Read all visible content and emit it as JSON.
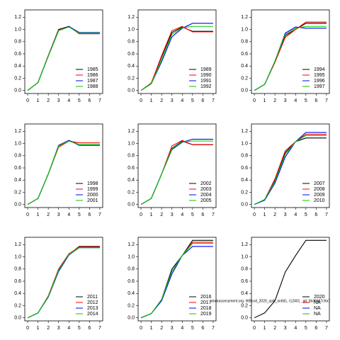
{
  "chart_data": [
    {
      "type": "line",
      "x": [
        0,
        1,
        2,
        3,
        4,
        5,
        6,
        7
      ],
      "xlim": [
        -0.28,
        7.28
      ],
      "ylim": [
        -0.05,
        1.32
      ],
      "xticks": [
        0,
        1,
        2,
        3,
        4,
        5,
        6,
        7
      ],
      "yticks": [
        {
          "value": 0,
          "label": "0.0"
        },
        0.2,
        0.4,
        0.6,
        0.8,
        {
          "value": 1,
          "label": "1.0"
        },
        1.2
      ],
      "legend": "bottomright",
      "series": [
        {
          "name": "1985",
          "color": "#000000",
          "values": [
            0,
            0.13,
            0.57,
            1.0,
            1.05,
            0.93,
            0.93,
            0.93
          ]
        },
        {
          "name": "1986",
          "color": "#ff0000",
          "values": [
            0,
            0.13,
            0.57,
            0.99,
            1.05,
            0.93,
            0.93,
            0.93
          ]
        },
        {
          "name": "1987",
          "color": "#0000ff",
          "values": [
            0,
            0.13,
            0.56,
            0.98,
            1.05,
            0.95,
            0.95,
            0.95
          ]
        },
        {
          "name": "1988",
          "color": "#00cc00",
          "values": [
            0,
            0.13,
            0.56,
            0.98,
            1.04,
            0.94,
            0.94,
            0.94
          ]
        }
      ]
    },
    {
      "type": "line",
      "x": [
        0,
        1,
        2,
        3,
        4,
        5,
        6,
        7
      ],
      "xlim": [
        -0.28,
        7.28
      ],
      "ylim": [
        -0.05,
        1.32
      ],
      "xticks": [
        0,
        1,
        2,
        3,
        4,
        5,
        6,
        7
      ],
      "yticks": [
        {
          "value": 0,
          "label": "0.0"
        },
        0.2,
        0.4,
        0.6,
        0.8,
        {
          "value": 1,
          "label": "1.0"
        },
        1.2
      ],
      "legend": "bottomright",
      "series": [
        {
          "name": "1989",
          "color": "#000000",
          "values": [
            0,
            0.12,
            0.55,
            0.95,
            1.04,
            0.97,
            0.97,
            0.97
          ]
        },
        {
          "name": "1990",
          "color": "#ff0000",
          "values": [
            0,
            0.12,
            0.57,
            0.98,
            1.05,
            0.96,
            0.96,
            0.96
          ]
        },
        {
          "name": "1991",
          "color": "#0000ff",
          "values": [
            0,
            0.11,
            0.47,
            0.88,
            1.02,
            1.1,
            1.1,
            1.1
          ]
        },
        {
          "name": "1992",
          "color": "#00cc00",
          "values": [
            0,
            0.11,
            0.5,
            0.92,
            1.03,
            1.05,
            1.05,
            1.05
          ]
        }
      ]
    },
    {
      "type": "line",
      "x": [
        0,
        1,
        2,
        3,
        4,
        5,
        6,
        7
      ],
      "xlim": [
        -0.28,
        7.28
      ],
      "ylim": [
        -0.05,
        1.32
      ],
      "xticks": [
        0,
        1,
        2,
        3,
        4,
        5,
        6,
        7
      ],
      "yticks": [
        {
          "value": 0,
          "label": "0.0"
        },
        0.2,
        0.4,
        0.6,
        0.8,
        {
          "value": 1,
          "label": "1.0"
        },
        1.2
      ],
      "legend": "bottomright",
      "series": [
        {
          "name": "1994",
          "color": "#000000",
          "values": [
            0,
            0.1,
            0.47,
            0.9,
            1.0,
            1.1,
            1.1,
            1.1
          ]
        },
        {
          "name": "1995",
          "color": "#ff0000",
          "values": [
            0,
            0.1,
            0.46,
            0.87,
            1.0,
            1.12,
            1.12,
            1.12
          ]
        },
        {
          "name": "1996",
          "color": "#0000ff",
          "values": [
            0,
            0.1,
            0.48,
            0.94,
            1.04,
            1.02,
            1.02,
            1.02
          ]
        },
        {
          "name": "1997",
          "color": "#00cc00",
          "values": [
            0,
            0.1,
            0.48,
            0.92,
            1.02,
            1.05,
            1.05,
            1.05
          ]
        }
      ]
    },
    {
      "type": "line",
      "x": [
        0,
        1,
        2,
        3,
        4,
        5,
        6,
        7
      ],
      "xlim": [
        -0.28,
        7.28
      ],
      "ylim": [
        -0.05,
        1.32
      ],
      "xticks": [
        0,
        1,
        2,
        3,
        4,
        5,
        6,
        7
      ],
      "yticks": [
        {
          "value": 0,
          "label": "0.0"
        },
        0.2,
        0.4,
        0.6,
        0.8,
        {
          "value": 1,
          "label": "1.0"
        },
        1.2
      ],
      "legend": "bottomright",
      "series": [
        {
          "name": "1998",
          "color": "#000000",
          "values": [
            0,
            0.1,
            0.5,
            0.96,
            1.05,
            0.98,
            0.98,
            0.98
          ]
        },
        {
          "name": "1999",
          "color": "#ff0000",
          "values": [
            0,
            0.1,
            0.5,
            0.94,
            1.04,
            1.01,
            1.01,
            1.01
          ]
        },
        {
          "name": "2000",
          "color": "#0000ff",
          "values": [
            0,
            0.1,
            0.5,
            0.97,
            1.05,
            0.97,
            0.97,
            0.97
          ]
        },
        {
          "name": "2001",
          "color": "#00cc00",
          "values": [
            0,
            0.1,
            0.5,
            0.96,
            1.04,
            0.98,
            0.98,
            0.98
          ]
        }
      ]
    },
    {
      "type": "line",
      "x": [
        0,
        1,
        2,
        3,
        4,
        5,
        6,
        7
      ],
      "xlim": [
        -0.28,
        7.28
      ],
      "ylim": [
        -0.05,
        1.32
      ],
      "xticks": [
        0,
        1,
        2,
        3,
        4,
        5,
        6,
        7
      ],
      "yticks": [
        {
          "value": 0,
          "label": "0.0"
        },
        0.2,
        0.4,
        0.6,
        0.8,
        {
          "value": 1,
          "label": "1.0"
        },
        1.2
      ],
      "legend": "bottomright",
      "series": [
        {
          "name": "2002",
          "color": "#000000",
          "values": [
            0,
            0.1,
            0.5,
            0.92,
            1.04,
            0.98,
            0.98,
            0.98
          ]
        },
        {
          "name": "2003",
          "color": "#ff0000",
          "values": [
            0,
            0.1,
            0.5,
            0.96,
            1.05,
            0.98,
            0.98,
            0.98
          ]
        },
        {
          "name": "2004",
          "color": "#0000ff",
          "values": [
            0,
            0.1,
            0.5,
            0.9,
            1.02,
            1.07,
            1.07,
            1.07
          ]
        },
        {
          "name": "2005",
          "color": "#00cc00",
          "values": [
            0,
            0.1,
            0.5,
            0.91,
            1.03,
            1.04,
            1.04,
            1.04
          ]
        }
      ]
    },
    {
      "type": "line",
      "x": [
        0,
        1,
        2,
        3,
        4,
        5,
        6,
        7
      ],
      "xlim": [
        -0.28,
        7.28
      ],
      "ylim": [
        -0.05,
        1.32
      ],
      "xticks": [
        0,
        1,
        2,
        3,
        4,
        5,
        6,
        7
      ],
      "yticks": [
        {
          "value": 0,
          "label": "0.0"
        },
        0.2,
        0.4,
        0.6,
        0.8,
        {
          "value": 1,
          "label": "1.0"
        },
        1.2
      ],
      "legend": "bottomright",
      "series": [
        {
          "name": "2007",
          "color": "#000000",
          "values": [
            0,
            0.08,
            0.4,
            0.85,
            1.03,
            1.09,
            1.09,
            1.09
          ]
        },
        {
          "name": "2008",
          "color": "#ff0000",
          "values": [
            0,
            0.08,
            0.42,
            0.88,
            1.03,
            1.15,
            1.15,
            1.15
          ]
        },
        {
          "name": "2009",
          "color": "#0000ff",
          "values": [
            0,
            0.07,
            0.35,
            0.78,
            1.03,
            1.18,
            1.18,
            1.18
          ]
        },
        {
          "name": "2010",
          "color": "#00cc00",
          "values": [
            0,
            0.08,
            0.38,
            0.82,
            1.03,
            1.13,
            1.13,
            1.13
          ]
        }
      ]
    },
    {
      "type": "line",
      "x": [
        0,
        1,
        2,
        3,
        4,
        5,
        6,
        7
      ],
      "xlim": [
        -0.28,
        7.28
      ],
      "ylim": [
        -0.05,
        1.32
      ],
      "xticks": [
        0,
        1,
        2,
        3,
        4,
        5,
        6,
        7
      ],
      "yticks": [
        {
          "value": 0,
          "label": "0.0"
        },
        0.2,
        0.4,
        0.6,
        0.8,
        {
          "value": 1,
          "label": "1.0"
        },
        1.2
      ],
      "legend": "bottomright",
      "series": [
        {
          "name": "2011",
          "color": "#000000",
          "values": [
            0,
            0.08,
            0.35,
            0.78,
            1.04,
            1.17,
            1.17,
            1.17
          ]
        },
        {
          "name": "2012",
          "color": "#ff0000",
          "values": [
            0,
            0.08,
            0.36,
            0.8,
            1.05,
            1.16,
            1.16,
            1.16
          ]
        },
        {
          "name": "2013",
          "color": "#0000ff",
          "values": [
            0,
            0.08,
            0.34,
            0.76,
            1.03,
            1.15,
            1.15,
            1.15
          ]
        },
        {
          "name": "2014",
          "color": "#00cc00",
          "values": [
            0,
            0.08,
            0.35,
            0.78,
            1.04,
            1.15,
            1.15,
            1.15
          ]
        }
      ]
    },
    {
      "type": "line",
      "x": [
        0,
        1,
        2,
        3,
        4,
        5,
        6,
        7
      ],
      "xlim": [
        -0.28,
        7.28
      ],
      "ylim": [
        -0.05,
        1.32
      ],
      "xticks": [
        0,
        1,
        2,
        3,
        4,
        5,
        6,
        7
      ],
      "yticks": [
        {
          "value": 0,
          "label": "0.0"
        },
        0.2,
        0.4,
        0.6,
        0.8,
        {
          "value": 1,
          "label": "1.0"
        },
        1.2
      ],
      "legend": "bottomright",
      "series": [
        {
          "name": "2016",
          "color": "#000000",
          "values": [
            0,
            0.07,
            0.3,
            0.8,
            1.02,
            1.27,
            1.27,
            1.27
          ]
        },
        {
          "name": "2017",
          "color": "#ff0000",
          "values": [
            0,
            0.07,
            0.3,
            0.76,
            1.02,
            1.24,
            1.24,
            1.24
          ]
        },
        {
          "name": "2018",
          "color": "#0000ff",
          "values": [
            0,
            0.07,
            0.28,
            0.72,
            1.02,
            1.17,
            1.17,
            1.17
          ]
        },
        {
          "name": "2019",
          "color": "#00cc00",
          "values": [
            0,
            0.07,
            0.3,
            0.76,
            1.02,
            1.22,
            1.22,
            1.22
          ]
        }
      ]
    },
    {
      "type": "line",
      "x": [
        0,
        1,
        2,
        3,
        4,
        5,
        6,
        7
      ],
      "xlim": [
        -0.28,
        7.28
      ],
      "ylim": [
        -0.05,
        1.32
      ],
      "xticks": [
        0,
        1,
        2,
        3,
        4,
        5,
        6,
        7
      ],
      "yticks": [
        {
          "value": 0,
          "label": "0.0"
        },
        0.2,
        0.4,
        0.6,
        0.8,
        {
          "value": 1,
          "label": "1.0"
        },
        1.2
      ],
      "legend": "bottomright",
      "annotation": "stockassessment.org, WBcod_2020_split_an0d1, r12401 , git: 5b39467c9a7",
      "series": [
        {
          "name": "2020",
          "color": "#000000",
          "values": [
            0,
            0.08,
            0.28,
            0.75,
            1.02,
            1.27,
            1.27,
            1.27
          ]
        },
        {
          "name": "NA",
          "color": "#ff0000",
          "values": [
            null,
            null,
            null,
            null,
            null,
            null,
            null,
            null
          ]
        },
        {
          "name": "NA",
          "color": "#0000ff",
          "values": [
            null,
            null,
            null,
            null,
            null,
            null,
            null,
            null
          ]
        },
        {
          "name": "NA",
          "color": "#00cc00",
          "values": [
            null,
            null,
            null,
            null,
            null,
            null,
            null,
            null
          ]
        }
      ]
    }
  ]
}
